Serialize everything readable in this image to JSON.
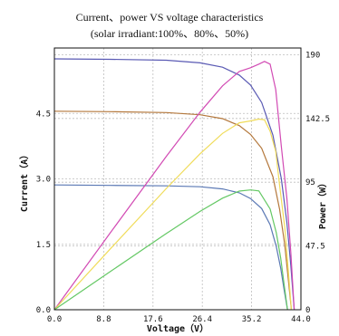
{
  "chart_data": {
    "type": "line",
    "title": "Current、power VS voltage characteristics",
    "subtitle": "(solar irradiant:100%、80%、50%)",
    "xlabel": "Voltage（V）",
    "ylabel": "Current（A）",
    "y2label": "Power（W）",
    "xlim": [
      0,
      44
    ],
    "ylim": [
      0,
      6
    ],
    "y2lim": [
      0,
      195
    ],
    "xticks": [
      "0.0",
      "8.8",
      "17.6",
      "26.4",
      "35.2",
      "44.0"
    ],
    "xtick_values": [
      0,
      8.8,
      17.6,
      26.4,
      35.2,
      44.0
    ],
    "yticks": [
      "0.0",
      "1.5",
      "3.0",
      "4.5"
    ],
    "ytick_values": [
      0,
      1.5,
      3.0,
      4.5
    ],
    "y2ticks": [
      "0",
      "47.5",
      "95",
      "142.5",
      "190"
    ],
    "y2tick_values": [
      0,
      47.5,
      95,
      142.5,
      190
    ],
    "grid": true,
    "series": [
      {
        "role": "current-100",
        "axis": "left",
        "color": "#5a5ab4",
        "x": [
          0,
          10,
          20,
          26,
          30,
          33,
          35,
          37,
          39,
          40.5,
          41.5,
          42.2,
          42.8
        ],
        "y": [
          5.75,
          5.74,
          5.72,
          5.66,
          5.56,
          5.38,
          5.15,
          4.75,
          4.0,
          3.0,
          2.0,
          1.0,
          0
        ]
      },
      {
        "role": "current-80",
        "axis": "left",
        "color": "#b4783c",
        "x": [
          0,
          10,
          20,
          26,
          30,
          33,
          35,
          37,
          39,
          40.2,
          41.1,
          41.7,
          42.3
        ],
        "y": [
          4.55,
          4.54,
          4.52,
          4.47,
          4.38,
          4.22,
          4.02,
          3.7,
          3.05,
          2.3,
          1.5,
          0.75,
          0
        ]
      },
      {
        "role": "current-50",
        "axis": "left",
        "color": "#5a78b4",
        "x": [
          0,
          10,
          20,
          26,
          30,
          33,
          35,
          37,
          38.5,
          39.6,
          40.4,
          41.0,
          41.6
        ],
        "y": [
          2.86,
          2.85,
          2.84,
          2.82,
          2.77,
          2.68,
          2.55,
          2.32,
          1.95,
          1.45,
          0.95,
          0.45,
          0
        ]
      },
      {
        "role": "power-100",
        "axis": "right",
        "color": "#d24bb4",
        "x": [
          0,
          10,
          20,
          26,
          30,
          33,
          35,
          36.5,
          37.5,
          38.5,
          39.5,
          40.5,
          41.5,
          42.2,
          42.8
        ],
        "y": [
          0,
          57.4,
          114.4,
          147.2,
          166.8,
          177.5,
          180.3,
          183,
          185,
          183,
          164,
          121.5,
          83,
          42.2,
          0
        ]
      },
      {
        "role": "power-80",
        "axis": "right",
        "color": "#f0dc5a",
        "x": [
          0,
          10,
          20,
          26,
          30,
          33,
          35,
          36.5,
          37.5,
          38.5,
          39.5,
          40.2,
          41.1,
          41.7,
          42.3
        ],
        "y": [
          0,
          45.4,
          90.4,
          116.2,
          131.4,
          139.3,
          140.7,
          142,
          141.5,
          133,
          118,
          92.5,
          61.7,
          31.3,
          0
        ]
      },
      {
        "role": "power-50",
        "axis": "right",
        "color": "#64c864",
        "x": [
          0,
          10,
          20,
          26,
          30,
          33,
          35,
          36.5,
          38.5,
          39.6,
          40.4,
          41.0,
          41.6
        ],
        "y": [
          0,
          28.5,
          56.8,
          73.3,
          83.1,
          88.4,
          89.3,
          88.5,
          75.1,
          57.4,
          38.4,
          18.5,
          0
        ]
      }
    ]
  }
}
